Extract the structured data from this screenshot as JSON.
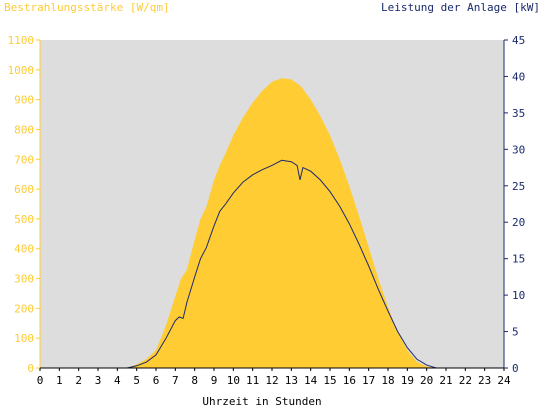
{
  "chart_data": {
    "type": "area",
    "left_title": "Bestrahlungsstärke [W/qm]",
    "right_title": "Leistung der Anlage [kW]",
    "xlabel": "Uhrzeit in Stunden",
    "x_ticks": [
      "0",
      "1",
      "2",
      "3",
      "4",
      "5",
      "6",
      "7",
      "8",
      "9",
      "10",
      "11",
      "12",
      "13",
      "14",
      "15",
      "16",
      "17",
      "18",
      "19",
      "20",
      "21",
      "22",
      "23",
      "24"
    ],
    "y_left_ticks": [
      "0",
      "100",
      "200",
      "300",
      "400",
      "500",
      "600",
      "700",
      "800",
      "900",
      "1000",
      "1100"
    ],
    "y_right_ticks": [
      "0",
      "5",
      "10",
      "15",
      "20",
      "25",
      "30",
      "35",
      "40",
      "45"
    ],
    "ylim_left": [
      0,
      1100
    ],
    "ylim_right": [
      0,
      45
    ],
    "xlim": [
      0,
      24
    ],
    "colors": {
      "plot_background": "#dddddd",
      "irradiance_fill": "#ffcc33",
      "power_line": "#1a2a6c",
      "left_axis": "#ffcc33",
      "right_axis": "#1a2a6c"
    },
    "series": [
      {
        "axis": "left",
        "style": "area",
        "points": [
          [
            0,
            0
          ],
          [
            4.5,
            0
          ],
          [
            5,
            12
          ],
          [
            5.5,
            30
          ],
          [
            6,
            60
          ],
          [
            6.5,
            140
          ],
          [
            7,
            240
          ],
          [
            7.3,
            300
          ],
          [
            7.6,
            330
          ],
          [
            8,
            430
          ],
          [
            8.3,
            500
          ],
          [
            8.6,
            540
          ],
          [
            9,
            630
          ],
          [
            9.3,
            680
          ],
          [
            9.6,
            720
          ],
          [
            10,
            780
          ],
          [
            10.5,
            840
          ],
          [
            11,
            890
          ],
          [
            11.5,
            930
          ],
          [
            12,
            960
          ],
          [
            12.5,
            972
          ],
          [
            13,
            968
          ],
          [
            13.5,
            945
          ],
          [
            14,
            900
          ],
          [
            14.5,
            845
          ],
          [
            15,
            780
          ],
          [
            15.5,
            700
          ],
          [
            16,
            610
          ],
          [
            16.5,
            510
          ],
          [
            17,
            405
          ],
          [
            17.5,
            300
          ],
          [
            18,
            205
          ],
          [
            18.5,
            120
          ],
          [
            19,
            60
          ],
          [
            19.5,
            20
          ],
          [
            20,
            5
          ],
          [
            20.5,
            0
          ],
          [
            24,
            0
          ]
        ]
      },
      {
        "axis": "right",
        "style": "line",
        "points": [
          [
            0,
            0
          ],
          [
            4.5,
            0
          ],
          [
            5,
            0.3
          ],
          [
            5.5,
            0.8
          ],
          [
            6,
            1.8
          ],
          [
            6.5,
            4
          ],
          [
            7,
            6.5
          ],
          [
            7.2,
            7
          ],
          [
            7.4,
            6.8
          ],
          [
            7.6,
            9
          ],
          [
            8,
            12.5
          ],
          [
            8.3,
            15
          ],
          [
            8.6,
            16.5
          ],
          [
            9,
            19.5
          ],
          [
            9.3,
            21.5
          ],
          [
            9.6,
            22.5
          ],
          [
            10,
            24
          ],
          [
            10.5,
            25.5
          ],
          [
            11,
            26.5
          ],
          [
            11.5,
            27.2
          ],
          [
            12,
            27.8
          ],
          [
            12.5,
            28.5
          ],
          [
            13,
            28.3
          ],
          [
            13.3,
            27.8
          ],
          [
            13.45,
            25.8
          ],
          [
            13.6,
            27.5
          ],
          [
            14,
            27
          ],
          [
            14.5,
            25.8
          ],
          [
            15,
            24.2
          ],
          [
            15.5,
            22.2
          ],
          [
            16,
            19.8
          ],
          [
            16.5,
            17
          ],
          [
            17,
            14
          ],
          [
            17.5,
            10.8
          ],
          [
            18,
            7.8
          ],
          [
            18.5,
            5
          ],
          [
            19,
            2.8
          ],
          [
            19.5,
            1.2
          ],
          [
            20,
            0.4
          ],
          [
            20.5,
            0
          ],
          [
            24,
            0
          ]
        ]
      }
    ]
  }
}
